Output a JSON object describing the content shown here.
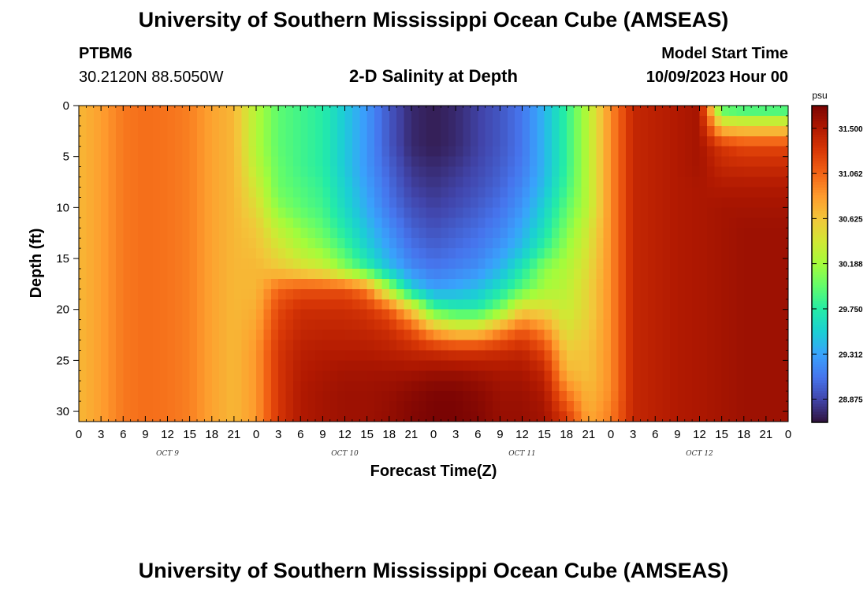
{
  "header": {
    "title": "University of Southern Mississippi Ocean Cube (AMSEAS)",
    "station": "PTBM6",
    "coordinates": "30.2120N  88.5050W",
    "subtitle": "2-D Salinity at Depth",
    "model_start_label": "Model Start Time",
    "model_start_value": "10/09/2023 Hour 00"
  },
  "footer": {
    "title": "University of Southern Mississippi Ocean Cube (AMSEAS)"
  },
  "chart_data": {
    "type": "heatmap",
    "title": "2-D Salinity at Depth",
    "xlabel": "Forecast Time(Z)",
    "ylabel": "Depth (ft)",
    "x_tick_labels": [
      "0",
      "3",
      "6",
      "9",
      "12",
      "15",
      "18",
      "21",
      "0",
      "3",
      "6",
      "9",
      "12",
      "15",
      "18",
      "21",
      "0",
      "3",
      "6",
      "9",
      "12",
      "15",
      "18",
      "21",
      "0",
      "3",
      "6",
      "9",
      "12",
      "15",
      "18",
      "21",
      "0"
    ],
    "day_labels": [
      "OCT 9",
      "OCT 10",
      "OCT 11",
      "OCT 12"
    ],
    "xlim_hours": [
      0,
      96
    ],
    "y_ticks": [
      0,
      5,
      10,
      15,
      20,
      25,
      30
    ],
    "ylim": [
      0,
      31
    ],
    "y_inverted": true,
    "colorbar": {
      "unit": "psu",
      "min": 28.65,
      "max": 31.72,
      "tick_labels": [
        "31.500",
        "31.062",
        "30.625",
        "30.188",
        "29.750",
        "29.312",
        "28.875"
      ],
      "colormap": [
        "#30123b",
        "#4145ab",
        "#4675ed",
        "#39a2fc",
        "#1bcfd4",
        "#24eca6",
        "#61fc6c",
        "#a4fc3b",
        "#d1e834",
        "#f3c63a",
        "#fe9b2d",
        "#f36315",
        "#d93806",
        "#b11901",
        "#7a0403"
      ]
    },
    "x_hours": [
      0,
      3,
      6,
      9,
      12,
      15,
      18,
      21,
      24,
      27,
      30,
      33,
      36,
      39,
      42,
      45,
      48,
      51,
      54,
      57,
      60,
      63,
      66,
      69,
      72,
      75,
      78,
      81,
      84,
      87,
      90,
      93,
      96
    ],
    "depths_ft": [
      0,
      2,
      4,
      6,
      8,
      10,
      12,
      14,
      16,
      18,
      20,
      22,
      24,
      26,
      28,
      30,
      31
    ],
    "z_note": "salinity (psu), rows = depths_ft, cols = x_hours",
    "z": [
      [
        30.7,
        30.82,
        30.98,
        31.02,
        31.0,
        30.95,
        30.8,
        30.7,
        30.25,
        29.95,
        29.85,
        29.75,
        29.5,
        29.25,
        28.95,
        28.75,
        28.7,
        28.75,
        28.85,
        28.95,
        29.1,
        29.4,
        29.8,
        30.3,
        30.9,
        31.4,
        31.45,
        31.5,
        31.55,
        29.8,
        29.7,
        29.7,
        29.7
      ],
      [
        30.7,
        30.82,
        30.98,
        31.02,
        31.0,
        30.95,
        30.8,
        30.7,
        30.25,
        29.95,
        29.85,
        29.75,
        29.5,
        29.25,
        28.95,
        28.75,
        28.7,
        28.75,
        28.85,
        28.95,
        29.1,
        29.4,
        29.8,
        30.3,
        30.9,
        31.4,
        31.45,
        31.5,
        31.55,
        30.6,
        30.55,
        30.55,
        30.55
      ],
      [
        30.7,
        30.82,
        30.98,
        31.02,
        31.0,
        30.95,
        30.8,
        30.7,
        30.25,
        29.95,
        29.85,
        29.75,
        29.5,
        29.25,
        28.95,
        28.75,
        28.7,
        28.75,
        28.85,
        28.95,
        29.1,
        29.4,
        29.8,
        30.3,
        30.9,
        31.4,
        31.45,
        31.5,
        31.55,
        31.3,
        31.2,
        31.2,
        31.2
      ],
      [
        30.7,
        30.82,
        30.98,
        31.02,
        31.0,
        30.95,
        30.8,
        30.7,
        30.3,
        29.98,
        29.85,
        29.75,
        29.5,
        29.25,
        29.0,
        28.8,
        28.75,
        28.8,
        28.88,
        28.98,
        29.12,
        29.4,
        29.8,
        30.3,
        30.9,
        31.4,
        31.45,
        31.5,
        31.55,
        31.4,
        31.38,
        31.38,
        31.38
      ],
      [
        30.7,
        30.82,
        30.98,
        31.02,
        31.0,
        30.95,
        30.8,
        30.7,
        30.4,
        30.0,
        29.9,
        29.8,
        29.55,
        29.3,
        29.05,
        28.85,
        28.8,
        28.85,
        28.92,
        29.02,
        29.18,
        29.45,
        29.85,
        30.3,
        30.9,
        31.4,
        31.45,
        31.5,
        31.52,
        31.5,
        31.5,
        31.5,
        31.5
      ],
      [
        30.7,
        30.82,
        30.98,
        31.02,
        31.0,
        30.95,
        30.8,
        30.7,
        30.5,
        30.1,
        29.95,
        29.85,
        29.6,
        29.35,
        29.1,
        28.92,
        28.85,
        28.9,
        28.98,
        29.08,
        29.25,
        29.55,
        29.95,
        30.3,
        30.9,
        31.4,
        31.45,
        31.5,
        31.52,
        31.55,
        31.55,
        31.55,
        31.55
      ],
      [
        30.7,
        30.82,
        30.98,
        31.02,
        31.0,
        30.95,
        30.8,
        30.7,
        30.6,
        30.3,
        30.1,
        29.95,
        29.7,
        29.45,
        29.2,
        29.0,
        28.92,
        28.98,
        29.05,
        29.15,
        29.35,
        29.65,
        30.05,
        30.4,
        30.9,
        31.4,
        31.45,
        31.5,
        31.52,
        31.55,
        31.58,
        31.58,
        31.58
      ],
      [
        30.7,
        30.82,
        30.98,
        31.02,
        31.0,
        30.95,
        30.8,
        30.7,
        30.65,
        30.45,
        30.25,
        30.1,
        29.85,
        29.55,
        29.3,
        29.08,
        29.0,
        29.05,
        29.12,
        29.25,
        29.45,
        29.8,
        30.15,
        30.45,
        30.9,
        31.4,
        31.45,
        31.5,
        31.52,
        31.55,
        31.58,
        31.58,
        31.58
      ],
      [
        30.7,
        30.82,
        30.98,
        31.02,
        31.0,
        30.95,
        30.8,
        30.7,
        30.7,
        30.62,
        30.5,
        30.4,
        30.1,
        29.8,
        29.45,
        29.2,
        29.1,
        29.15,
        29.22,
        29.4,
        29.7,
        30.1,
        30.25,
        30.5,
        30.9,
        31.4,
        31.45,
        31.5,
        31.52,
        31.55,
        31.58,
        31.58,
        31.58
      ],
      [
        30.7,
        30.82,
        30.98,
        31.02,
        31.0,
        30.95,
        30.8,
        30.7,
        30.7,
        31.05,
        31.15,
        31.15,
        31.15,
        30.95,
        30.2,
        29.55,
        29.3,
        29.35,
        29.45,
        29.65,
        29.95,
        30.2,
        30.3,
        30.55,
        30.9,
        31.4,
        31.45,
        31.5,
        31.52,
        31.55,
        31.58,
        31.58,
        31.58
      ],
      [
        30.7,
        30.82,
        30.98,
        31.02,
        31.0,
        30.95,
        30.8,
        30.7,
        30.75,
        31.2,
        31.35,
        31.35,
        31.35,
        31.3,
        31.1,
        30.6,
        29.9,
        29.75,
        29.75,
        30.05,
        30.55,
        30.5,
        30.35,
        30.55,
        30.9,
        31.4,
        31.45,
        31.5,
        31.52,
        31.55,
        31.58,
        31.58,
        31.58
      ],
      [
        30.7,
        30.82,
        30.98,
        31.02,
        31.0,
        30.95,
        30.8,
        30.7,
        30.8,
        31.25,
        31.4,
        31.42,
        31.42,
        31.4,
        31.35,
        31.15,
        30.75,
        30.55,
        30.55,
        30.85,
        31.1,
        30.9,
        30.45,
        30.6,
        30.9,
        31.4,
        31.45,
        31.5,
        31.52,
        31.55,
        31.58,
        31.58,
        31.58
      ],
      [
        30.7,
        30.82,
        30.98,
        31.02,
        31.0,
        30.95,
        30.8,
        30.7,
        30.85,
        31.3,
        31.45,
        31.48,
        31.48,
        31.48,
        31.45,
        31.4,
        31.35,
        31.3,
        31.3,
        31.35,
        31.4,
        31.2,
        30.6,
        30.65,
        30.9,
        31.4,
        31.45,
        31.5,
        31.52,
        31.55,
        31.58,
        31.58,
        31.58
      ],
      [
        30.7,
        30.82,
        30.98,
        31.02,
        31.0,
        30.95,
        30.8,
        30.7,
        30.85,
        31.3,
        31.48,
        31.52,
        31.55,
        31.55,
        31.55,
        31.55,
        31.58,
        31.58,
        31.55,
        31.52,
        31.52,
        31.4,
        30.7,
        30.65,
        30.9,
        31.4,
        31.45,
        31.5,
        31.52,
        31.55,
        31.58,
        31.58,
        31.58
      ],
      [
        30.7,
        30.82,
        30.98,
        31.02,
        31.0,
        30.95,
        30.8,
        30.7,
        30.85,
        31.3,
        31.5,
        31.55,
        31.58,
        31.58,
        31.6,
        31.65,
        31.7,
        31.7,
        31.65,
        31.58,
        31.58,
        31.5,
        30.95,
        30.7,
        30.9,
        31.4,
        31.45,
        31.5,
        31.52,
        31.55,
        31.58,
        31.58,
        31.58
      ],
      [
        30.7,
        30.82,
        30.98,
        31.02,
        31.0,
        30.95,
        30.8,
        30.7,
        30.85,
        31.3,
        31.5,
        31.55,
        31.58,
        31.58,
        31.62,
        31.68,
        31.72,
        31.72,
        31.68,
        31.6,
        31.6,
        31.55,
        31.2,
        30.75,
        30.95,
        31.4,
        31.45,
        31.5,
        31.52,
        31.55,
        31.58,
        31.58,
        31.58
      ],
      [
        30.7,
        30.82,
        30.98,
        31.02,
        31.0,
        30.95,
        30.8,
        30.7,
        30.85,
        31.3,
        31.5,
        31.55,
        31.58,
        31.58,
        31.62,
        31.68,
        31.72,
        31.72,
        31.68,
        31.6,
        31.6,
        31.55,
        31.3,
        30.8,
        30.95,
        31.4,
        31.45,
        31.5,
        31.52,
        31.55,
        31.58,
        31.58,
        31.58
      ]
    ]
  }
}
